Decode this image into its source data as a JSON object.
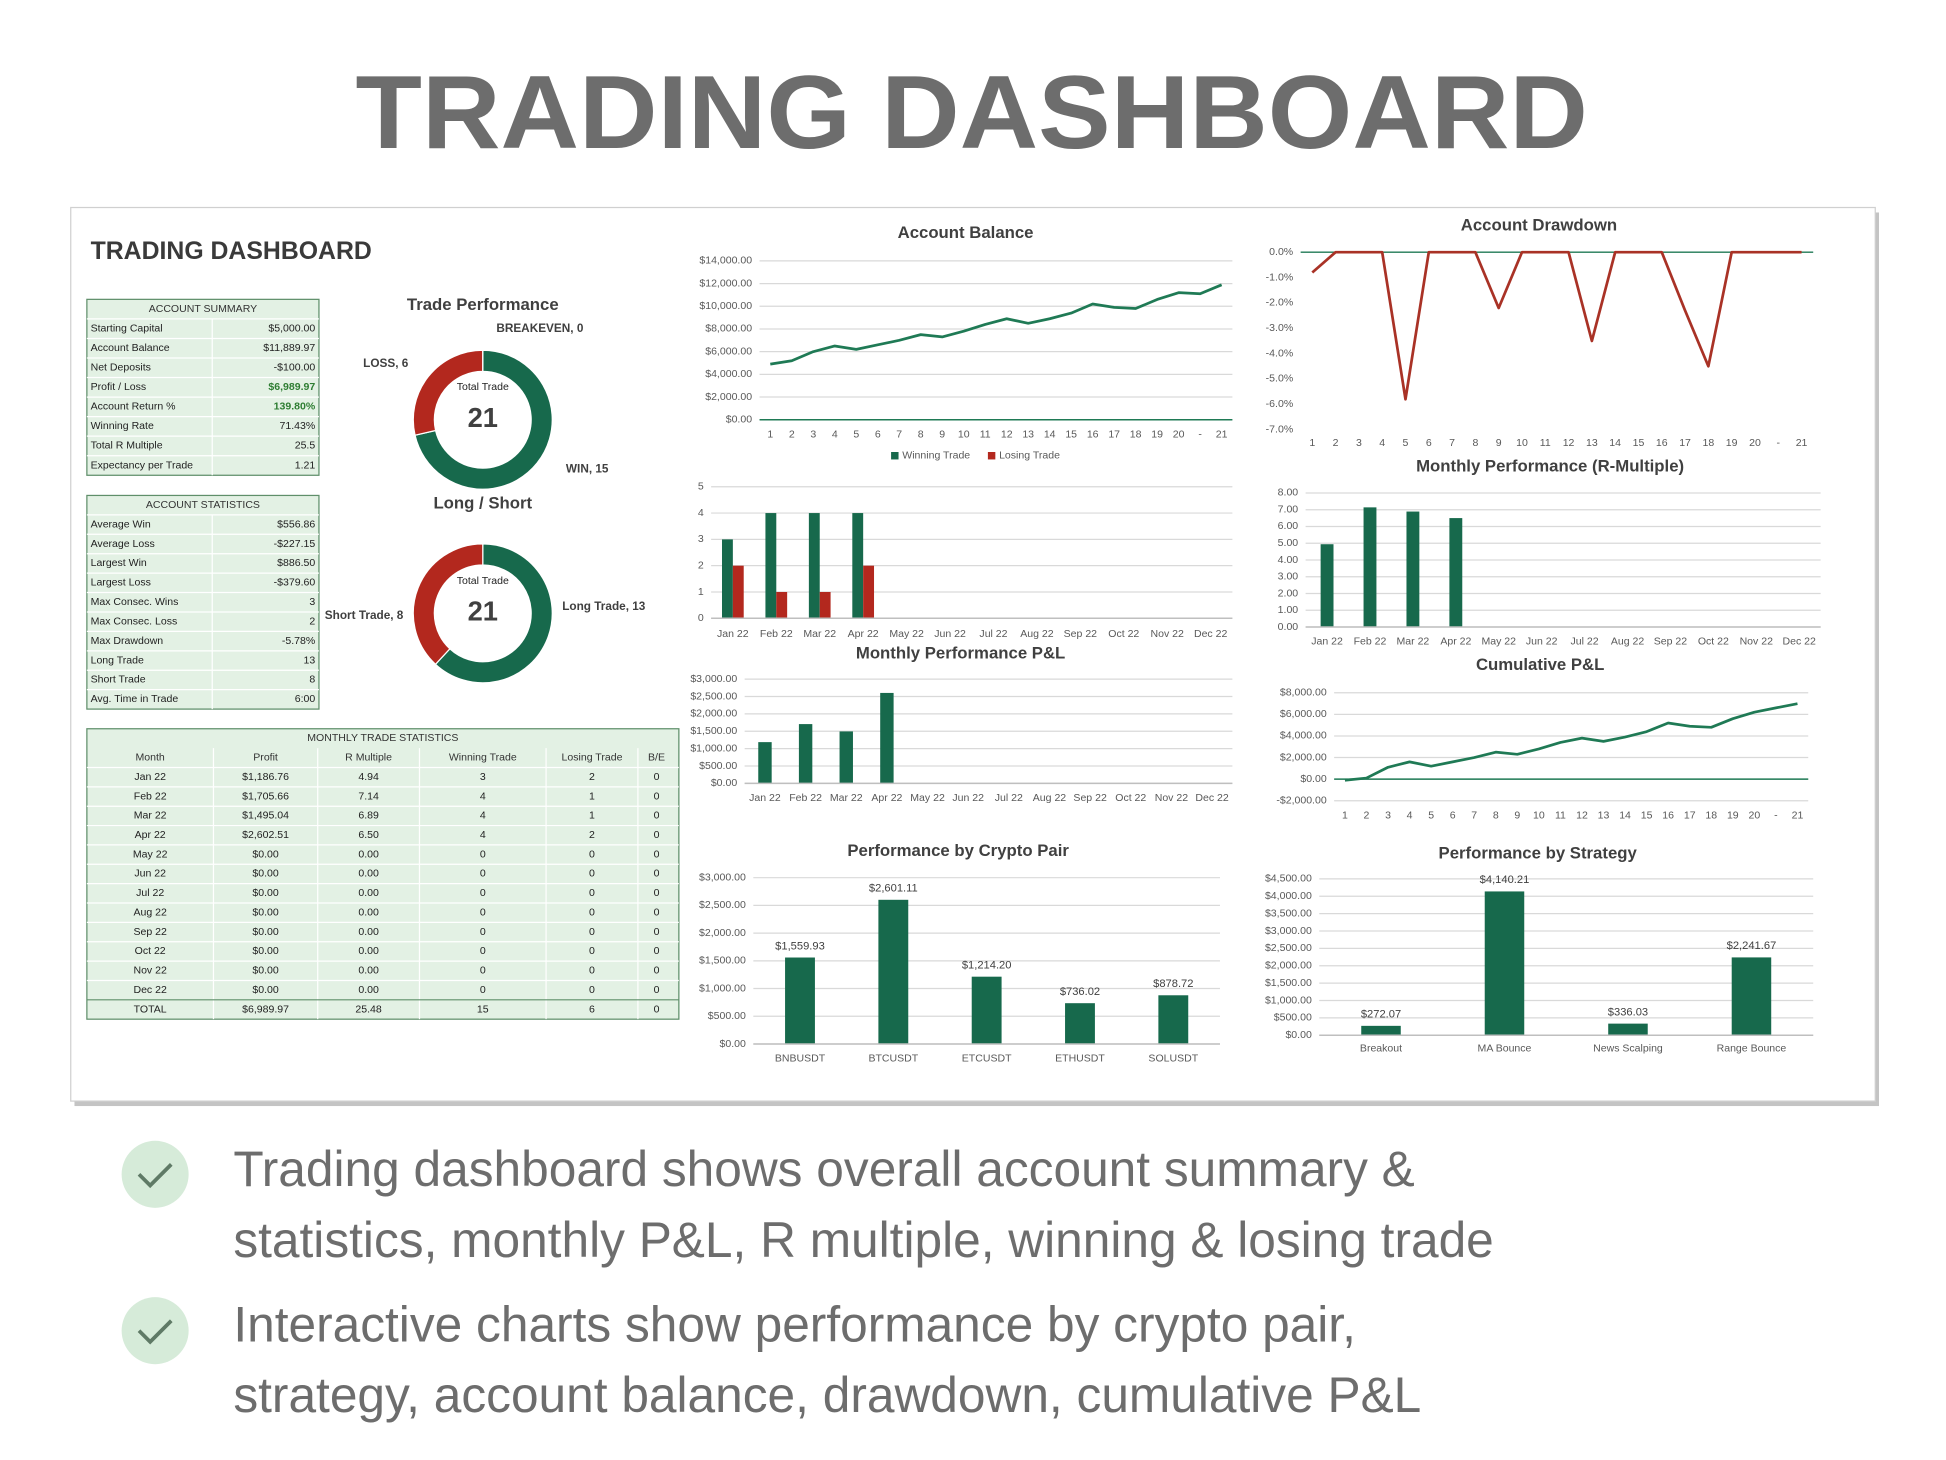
{
  "title": "TRADING DASHBOARD",
  "dashboard": {
    "title": "TRADING DASHBOARD",
    "account_summary": {
      "title": "ACCOUNT SUMMARY",
      "rows": [
        [
          "Starting Capital",
          "$5,000.00"
        ],
        [
          "Account Balance",
          "$11,889.97"
        ],
        [
          "Net Deposits",
          "-$100.00"
        ],
        [
          "Profit / Loss",
          "$6,989.97"
        ],
        [
          "Account Return %",
          "139.80%"
        ],
        [
          "Winning Rate",
          "71.43%"
        ],
        [
          "Total R Multiple",
          "25.5"
        ],
        [
          "Expectancy per Trade",
          "1.21"
        ]
      ]
    },
    "account_statistics": {
      "title": "ACCOUNT STATISTICS",
      "rows": [
        [
          "Average Win",
          "$556.86"
        ],
        [
          "Average Loss",
          "-$227.15"
        ],
        [
          "Largest Win",
          "$886.50"
        ],
        [
          "Largest Loss",
          "-$379.60"
        ],
        [
          "Max Consec. Wins",
          "3"
        ],
        [
          "Max Consec. Loss",
          "2"
        ],
        [
          "Max Drawdown",
          "-5.78%"
        ],
        [
          "Long Trade",
          "13"
        ],
        [
          "Short Trade",
          "8"
        ],
        [
          "Avg. Time in Trade",
          "6:00"
        ]
      ]
    },
    "monthly_trade_statistics": {
      "title": "MONTHLY TRADE STATISTICS",
      "header": [
        "Month",
        "Profit",
        "R Multiple",
        "Winning Trade",
        "Losing Trade",
        "B/E"
      ],
      "rows": [
        [
          "Jan 22",
          "$1,186.76",
          "4.94",
          "3",
          "2",
          "0"
        ],
        [
          "Feb 22",
          "$1,705.66",
          "7.14",
          "4",
          "1",
          "0"
        ],
        [
          "Mar 22",
          "$1,495.04",
          "6.89",
          "4",
          "1",
          "0"
        ],
        [
          "Apr 22",
          "$2,602.51",
          "6.50",
          "4",
          "2",
          "0"
        ],
        [
          "May 22",
          "$0.00",
          "0.00",
          "0",
          "0",
          "0"
        ],
        [
          "Jun 22",
          "$0.00",
          "0.00",
          "0",
          "0",
          "0"
        ],
        [
          "Jul 22",
          "$0.00",
          "0.00",
          "0",
          "0",
          "0"
        ],
        [
          "Aug 22",
          "$0.00",
          "0.00",
          "0",
          "0",
          "0"
        ],
        [
          "Sep 22",
          "$0.00",
          "0.00",
          "0",
          "0",
          "0"
        ],
        [
          "Oct 22",
          "$0.00",
          "0.00",
          "0",
          "0",
          "0"
        ],
        [
          "Nov 22",
          "$0.00",
          "0.00",
          "0",
          "0",
          "0"
        ],
        [
          "Dec 22",
          "$0.00",
          "0.00",
          "0",
          "0",
          "0"
        ]
      ],
      "total": [
        "TOTAL",
        "$6,989.97",
        "25.48",
        "15",
        "6",
        "0"
      ]
    }
  },
  "chart_data": [
    {
      "type": "donut",
      "title": "Trade Performance",
      "center_label": "Total Trade",
      "center_value": 21,
      "values": [
        15,
        6,
        0
      ],
      "value_labels": [
        "WIN, 15",
        "LOSS, 6",
        "BREAKEVEN, 0"
      ],
      "colors": [
        "#17694c",
        "#b3281e",
        "#9e9e9e"
      ]
    },
    {
      "type": "donut",
      "title": "Long / Short",
      "center_label": "Total Trade",
      "center_value": 21,
      "values": [
        13,
        8
      ],
      "value_labels": [
        "Long Trade, 13",
        "Short Trade, 8"
      ],
      "colors": [
        "#17694c",
        "#b3281e"
      ]
    },
    {
      "type": "line",
      "title": "Account Balance",
      "categories": [
        "1",
        "2",
        "3",
        "4",
        "5",
        "6",
        "7",
        "8",
        "9",
        "10",
        "11",
        "12",
        "13",
        "14",
        "15",
        "16",
        "17",
        "18",
        "19",
        "20",
        "-",
        "21"
      ],
      "values": [
        4900,
        5200,
        6000,
        6500,
        6200,
        6600,
        7000,
        7500,
        7300,
        7800,
        8400,
        8900,
        8500,
        8900,
        9400,
        10200,
        9900,
        9800,
        10600,
        11200,
        11100,
        11890
      ],
      "color": "#1f7a55",
      "axis_color": "#1f7a55",
      "grid": true,
      "ylim": [
        0,
        14000
      ],
      "yticks": [
        {
          "value": 0,
          "label": "$0.00"
        },
        {
          "value": 2000,
          "label": "$2,000.00"
        },
        {
          "value": 4000,
          "label": "$4,000.00"
        },
        {
          "value": 6000,
          "label": "$6,000.00"
        },
        {
          "value": 8000,
          "label": "$8,000.00"
        },
        {
          "value": 10000,
          "label": "$10,000.00"
        },
        {
          "value": 12000,
          "label": "$12,000.00"
        },
        {
          "value": 14000,
          "label": "$14,000.00"
        }
      ]
    },
    {
      "type": "bar",
      "legend": true,
      "categories": [
        "Jan 22",
        "Feb 22",
        "Mar 22",
        "Apr 22",
        "May 22",
        "Jun 22",
        "Jul 22",
        "Aug 22",
        "Sep 22",
        "Oct 22",
        "Nov 22",
        "Dec 22"
      ],
      "series": [
        {
          "name": "Winning Trade",
          "color": "#17694c",
          "values": [
            3,
            4,
            4,
            4,
            0,
            0,
            0,
            0,
            0,
            0,
            0,
            0
          ]
        },
        {
          "name": "Losing Trade",
          "color": "#b3281e",
          "values": [
            2,
            1,
            1,
            2,
            0,
            0,
            0,
            0,
            0,
            0,
            0,
            0
          ]
        }
      ],
      "axis_color": "#bfbfbf",
      "grid": true,
      "ylim": [
        0,
        5
      ],
      "yticks": [
        0,
        1,
        2,
        3,
        4,
        5
      ]
    },
    {
      "type": "bar",
      "title": "Monthly Performance P&L",
      "categories": [
        "Jan 22",
        "Feb 22",
        "Mar 22",
        "Apr 22",
        "May 22",
        "Jun 22",
        "Jul 22",
        "Aug 22",
        "Sep 22",
        "Oct 22",
        "Nov 22",
        "Dec 22"
      ],
      "values": [
        1186.76,
        1705.66,
        1495.04,
        2602.51,
        0,
        0,
        0,
        0,
        0,
        0,
        0,
        0
      ],
      "color": "#17694c",
      "axis_color": "#bfbfbf",
      "grid": true,
      "ylim": [
        0,
        3000
      ],
      "yticks": [
        {
          "value": 0,
          "label": "$0.00"
        },
        {
          "value": 500,
          "label": "$500.00"
        },
        {
          "value": 1000,
          "label": "$1,000.00"
        },
        {
          "value": 1500,
          "label": "$1,500.00"
        },
        {
          "value": 2000,
          "label": "$2,000.00"
        },
        {
          "value": 2500,
          "label": "$2,500.00"
        },
        {
          "value": 3000,
          "label": "$3,000.00"
        }
      ]
    },
    {
      "type": "bar",
      "title": "Performance by Crypto Pair",
      "categories": [
        "BNBUSDT",
        "BTCUSDT",
        "ETCUSDT",
        "ETHUSDT",
        "SOLUSDT"
      ],
      "values": [
        1559.93,
        2601.11,
        1214.2,
        736.02,
        878.72
      ],
      "value_labels": [
        "$1,559.93",
        "$2,601.11",
        "$1,214.20",
        "$736.02",
        "$878.72"
      ],
      "color": "#17694c",
      "axis_color": "#bfbfbf",
      "grid": true,
      "ylim": [
        0,
        3000
      ],
      "yticks": [
        {
          "value": 0,
          "label": "$0.00"
        },
        {
          "value": 500,
          "label": "$500.00"
        },
        {
          "value": 1000,
          "label": "$1,000.00"
        },
        {
          "value": 1500,
          "label": "$1,500.00"
        },
        {
          "value": 2000,
          "label": "$2,000.00"
        },
        {
          "value": 2500,
          "label": "$2,500.00"
        },
        {
          "value": 3000,
          "label": "$3,000.00"
        }
      ]
    },
    {
      "type": "line",
      "title": "Account Drawdown",
      "categories": [
        "1",
        "2",
        "3",
        "4",
        "5",
        "6",
        "7",
        "8",
        "9",
        "10",
        "11",
        "12",
        "13",
        "14",
        "15",
        "16",
        "17",
        "18",
        "19",
        "20",
        "-",
        "21"
      ],
      "values": [
        -0.8,
        0,
        0,
        0,
        -5.8,
        0,
        0,
        0,
        -2.2,
        0,
        0,
        0,
        -3.5,
        0,
        0,
        0,
        -2.3,
        -4.5,
        0,
        0,
        0,
        0
      ],
      "color": "#a93226",
      "axis_color": "#1f7a55",
      "grid": false,
      "ylim": [
        -7,
        0
      ],
      "yticks": [
        {
          "value": 0,
          "label": "0.0%"
        },
        {
          "value": -1,
          "label": "-1.0%"
        },
        {
          "value": -2,
          "label": "-2.0%"
        },
        {
          "value": -3,
          "label": "-3.0%"
        },
        {
          "value": -4,
          "label": "-4.0%"
        },
        {
          "value": -5,
          "label": "-5.0%"
        },
        {
          "value": -6,
          "label": "-6.0%"
        },
        {
          "value": -7,
          "label": "-7.0%"
        }
      ]
    },
    {
      "type": "bar",
      "title": "Monthly Performance (R-Multiple)",
      "categories": [
        "Jan 22",
        "Feb 22",
        "Mar 22",
        "Apr 22",
        "May 22",
        "Jun 22",
        "Jul 22",
        "Aug 22",
        "Sep 22",
        "Oct 22",
        "Nov 22",
        "Dec 22"
      ],
      "values": [
        4.94,
        7.14,
        6.89,
        6.5,
        0,
        0,
        0,
        0,
        0,
        0,
        0,
        0
      ],
      "color": "#17694c",
      "axis_color": "#bfbfbf",
      "grid": true,
      "ylim": [
        0,
        8
      ],
      "yticks": [
        {
          "value": 0,
          "label": "0.00"
        },
        {
          "value": 1,
          "label": "1.00"
        },
        {
          "value": 2,
          "label": "2.00"
        },
        {
          "value": 3,
          "label": "3.00"
        },
        {
          "value": 4,
          "label": "4.00"
        },
        {
          "value": 5,
          "label": "5.00"
        },
        {
          "value": 6,
          "label": "6.00"
        },
        {
          "value": 7,
          "label": "7.00"
        },
        {
          "value": 8,
          "label": "8.00"
        }
      ]
    },
    {
      "type": "line",
      "title": "Cumulative P&L",
      "categories": [
        "1",
        "2",
        "3",
        "4",
        "5",
        "6",
        "7",
        "8",
        "9",
        "10",
        "11",
        "12",
        "13",
        "14",
        "15",
        "16",
        "17",
        "18",
        "19",
        "20",
        "-",
        "21"
      ],
      "values": [
        -100,
        100,
        1100,
        1600,
        1200,
        1600,
        2000,
        2500,
        2300,
        2800,
        3400,
        3800,
        3500,
        3900,
        4400,
        5200,
        4900,
        4800,
        5600,
        6200,
        6600,
        6990
      ],
      "color": "#1f7a55",
      "axis_color": "#1f7a55",
      "grid": true,
      "ylim": [
        -2000,
        8000
      ],
      "yticks": [
        {
          "value": -2000,
          "label": "-$2,000.00"
        },
        {
          "value": 0,
          "label": "$0.00"
        },
        {
          "value": 2000,
          "label": "$2,000.00"
        },
        {
          "value": 4000,
          "label": "$4,000.00"
        },
        {
          "value": 6000,
          "label": "$6,000.00"
        },
        {
          "value": 8000,
          "label": "$8,000.00"
        }
      ]
    },
    {
      "type": "bar",
      "title": "Performance by Strategy",
      "categories": [
        "Breakout",
        "MA Bounce",
        "News Scalping",
        "Range Bounce"
      ],
      "values": [
        272.07,
        4140.21,
        336.03,
        2241.67
      ],
      "value_labels": [
        "$272.07",
        "$4,140.21",
        "$336.03",
        "$2,241.67"
      ],
      "color": "#17694c",
      "axis_color": "#bfbfbf",
      "grid": true,
      "ylim": [
        0,
        4500
      ],
      "yticks": [
        {
          "value": 0,
          "label": "$0.00"
        },
        {
          "value": 500,
          "label": "$500.00"
        },
        {
          "value": 1000,
          "label": "$1,000.00"
        },
        {
          "value": 1500,
          "label": "$1,500.00"
        },
        {
          "value": 2000,
          "label": "$2,000.00"
        },
        {
          "value": 2500,
          "label": "$2,500.00"
        },
        {
          "value": 3000,
          "label": "$3,000.00"
        },
        {
          "value": 3500,
          "label": "$3,500.00"
        },
        {
          "value": 4000,
          "label": "$4,000.00"
        },
        {
          "value": 4500,
          "label": "$4,500.00"
        }
      ]
    }
  ],
  "bullets": [
    [
      "Trading dashboard shows overall account summary &",
      "statistics, monthly P&L, R multiple, winning & losing trade"
    ],
    [
      "Interactive charts show performance by crypto pair,",
      "strategy, account balance, drawdown, cumulative P&L"
    ]
  ]
}
